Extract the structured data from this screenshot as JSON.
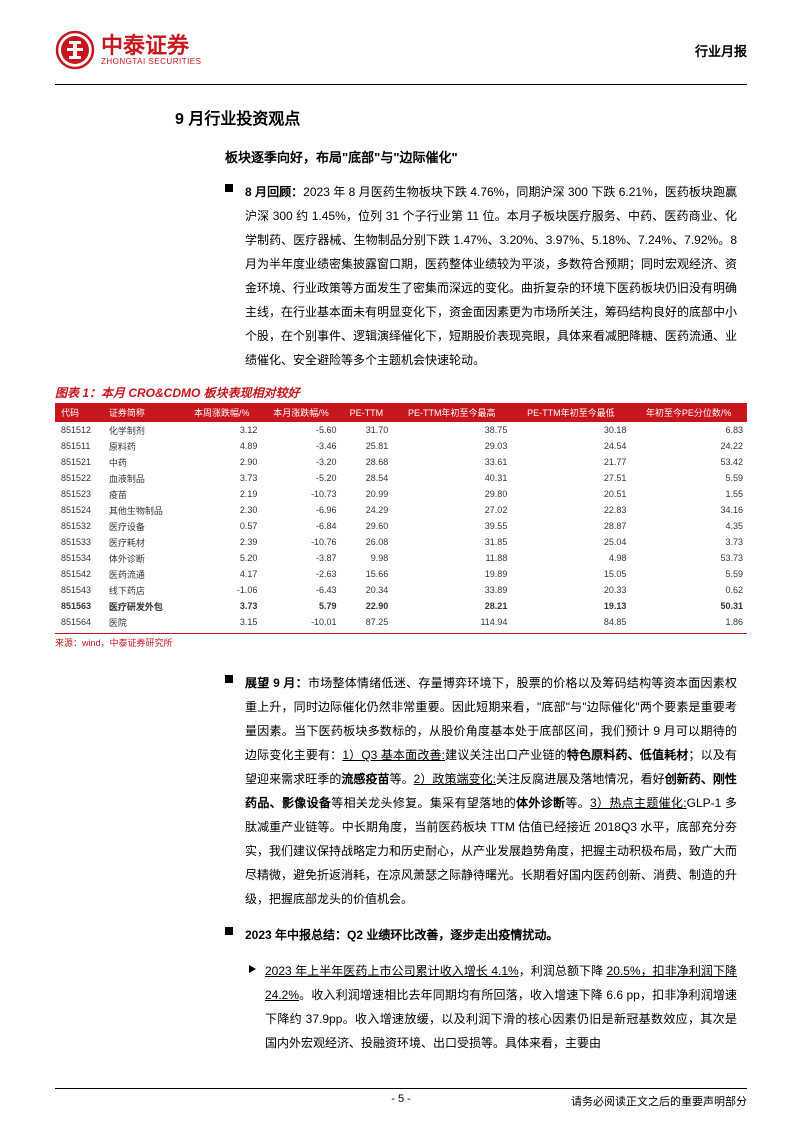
{
  "header": {
    "logo_cn": "中泰证券",
    "logo_en": "ZHONGTAI SECURITIES",
    "report_type": "行业月报"
  },
  "section": {
    "title": "9 月行业投资观点",
    "subtitle": "板块逐季向好，布局\"底部\"与\"边际催化\""
  },
  "bullet1": {
    "lead": "8 月回顾：",
    "text": "2023 年 8 月医药生物板块下跌 4.76%，同期沪深 300 下跌 6.21%，医药板块跑赢沪深 300 约 1.45%，位列 31 个子行业第 11 位。本月子板块医疗服务、中药、医药商业、化学制药、医疗器械、生物制品分别下跌 1.47%、3.20%、3.97%、5.18%、7.24%、7.92%。8 月为半年度业绩密集披露窗口期，医药整体业绩较为平淡，多数符合预期；同时宏观经济、资金环境、行业政策等方面发生了密集而深远的变化。曲折复杂的环境下医药板块仍旧没有明确主线，在行业基本面未有明显变化下，资金面因素更为市场所关注，筹码结构良好的底部中小个股，在个别事件、逻辑演绎催化下，短期股价表现亮眼，具体来看减肥降糖、医药流通、业绩催化、安全避险等多个主题机会快速轮动。"
  },
  "chart": {
    "title": "图表 1：本月 CRO&CDMO 板块表现相对较好",
    "source": "来源：wind，中泰证券研究所",
    "columns": [
      "代码",
      "证券简称",
      "本周涨跌幅/%",
      "本月涨跌幅/%",
      "PE-TTM",
      "PE-TTM年初至今最高",
      "PE-TTM年初至今最低",
      "年初至今PE分位数/%"
    ],
    "rows": [
      {
        "cells": [
          "851512",
          "化学制剂",
          "3.12",
          "-5.60",
          "31.70",
          "38.75",
          "30.18",
          "6.83"
        ],
        "highlight": false
      },
      {
        "cells": [
          "851511",
          "原料药",
          "4.89",
          "-3.46",
          "25.81",
          "29.03",
          "24.54",
          "24.22"
        ],
        "highlight": false
      },
      {
        "cells": [
          "851521",
          "中药",
          "2.90",
          "-3.20",
          "28.68",
          "33.61",
          "21.77",
          "53.42"
        ],
        "highlight": false
      },
      {
        "cells": [
          "851522",
          "血液制品",
          "3.73",
          "-5.20",
          "28.54",
          "40.31",
          "27.51",
          "5.59"
        ],
        "highlight": false
      },
      {
        "cells": [
          "851523",
          "疫苗",
          "2.19",
          "-10.73",
          "20.99",
          "29.80",
          "20.51",
          "1.55"
        ],
        "highlight": false
      },
      {
        "cells": [
          "851524",
          "其他生物制品",
          "2.30",
          "-6.96",
          "24.29",
          "27.02",
          "22.83",
          "34.16"
        ],
        "highlight": false
      },
      {
        "cells": [
          "851532",
          "医疗设备",
          "0.57",
          "-6.84",
          "29.60",
          "39.55",
          "28.87",
          "4.35"
        ],
        "highlight": false
      },
      {
        "cells": [
          "851533",
          "医疗耗材",
          "2.39",
          "-10.76",
          "26.08",
          "31.85",
          "25.04",
          "3.73"
        ],
        "highlight": false
      },
      {
        "cells": [
          "851534",
          "体外诊断",
          "5.20",
          "-3.87",
          "9.98",
          "11.88",
          "4.98",
          "53.73"
        ],
        "highlight": false
      },
      {
        "cells": [
          "851542",
          "医药流通",
          "4.17",
          "-2.63",
          "15.66",
          "19.89",
          "15.05",
          "5.59"
        ],
        "highlight": false
      },
      {
        "cells": [
          "851543",
          "线下药店",
          "-1.06",
          "-6.43",
          "20.34",
          "33.89",
          "20.33",
          "0.62"
        ],
        "highlight": false
      },
      {
        "cells": [
          "851563",
          "医疗研发外包",
          "3.73",
          "5.79",
          "22.90",
          "28.21",
          "19.13",
          "50.31"
        ],
        "highlight": true
      },
      {
        "cells": [
          "851564",
          "医院",
          "3.15",
          "-10.01",
          "87.25",
          "114.94",
          "84.85",
          "1.86"
        ],
        "highlight": false
      }
    ]
  },
  "bullet2": {
    "lead": "展望 9 月：",
    "text1": "市场整体情绪低迷、存量博弈环境下，股票的价格以及筹码结构等资本面因素权重上升，同时边际催化仍然非常重要。因此短期来看，\"底部\"与\"边际催化\"两个要素是重要考量因素。当下医药板块多数标的，从股价角度基本处于底部区间，我们预计 9 月可以期待的边际变化主要有：",
    "u1": "1）Q3 基本面改善:",
    "t1": "建议关注出口产业链的",
    "b1": "特色原料药、低值耗材",
    "t2": "；以及有望迎来需求旺季的",
    "b2": "流感疫苗",
    "t3": "等。",
    "u2": "2）政策端变化:",
    "t4": "关注反腐进展及落地情况，看好",
    "b3": "创新药、刚性药品、影像设备",
    "t5": "等相关龙头修复。集采有望落地的",
    "b4": "体外诊断",
    "t6": "等。",
    "u3": "3）热点主题催化:",
    "t7": "GLP-1 多肽减重产业链等。中长期角度，当前医药板块 TTM 估值已经接近 2018Q3 水平，底部充分夯实，我们建议保持战略定力和历史耐心，从产业发展趋势角度，把握主动积极布局，致广大而尽精微，避免折返消耗，在凉风萧瑟之际静待曙光。长期看好国内医药创新、消费、制造的升级，把握底部龙头的价值机会。"
  },
  "bullet3": {
    "lead": "2023 年中报总结：",
    "tail": "Q2 业绩环比改善，逐步走出疫情扰动。"
  },
  "sub1": {
    "u1": "2023 年上半年医药上市公司累计收入增长 4.1%",
    "t1": "，利润总额下降 ",
    "u2": "20.5%，扣非净利润下降 24.2%",
    "t2": "。收入利润增速相比去年同期均有所回落，收入增速下降 6.6 pp，扣非净利润增速下降约 37.9pp。收入增速放缓，以及利润下滑的核心因素仍旧是新冠基数效应，其次是国内外宏观经济、投融资环境、出口受损等。具体来看，主要由"
  },
  "footer": {
    "page": "- 5 -",
    "disclaimer": "请务必阅读正文之后的重要声明部分"
  },
  "colors": {
    "brand_red": "#c7161e",
    "text_black": "#000000",
    "background": "#ffffff"
  }
}
